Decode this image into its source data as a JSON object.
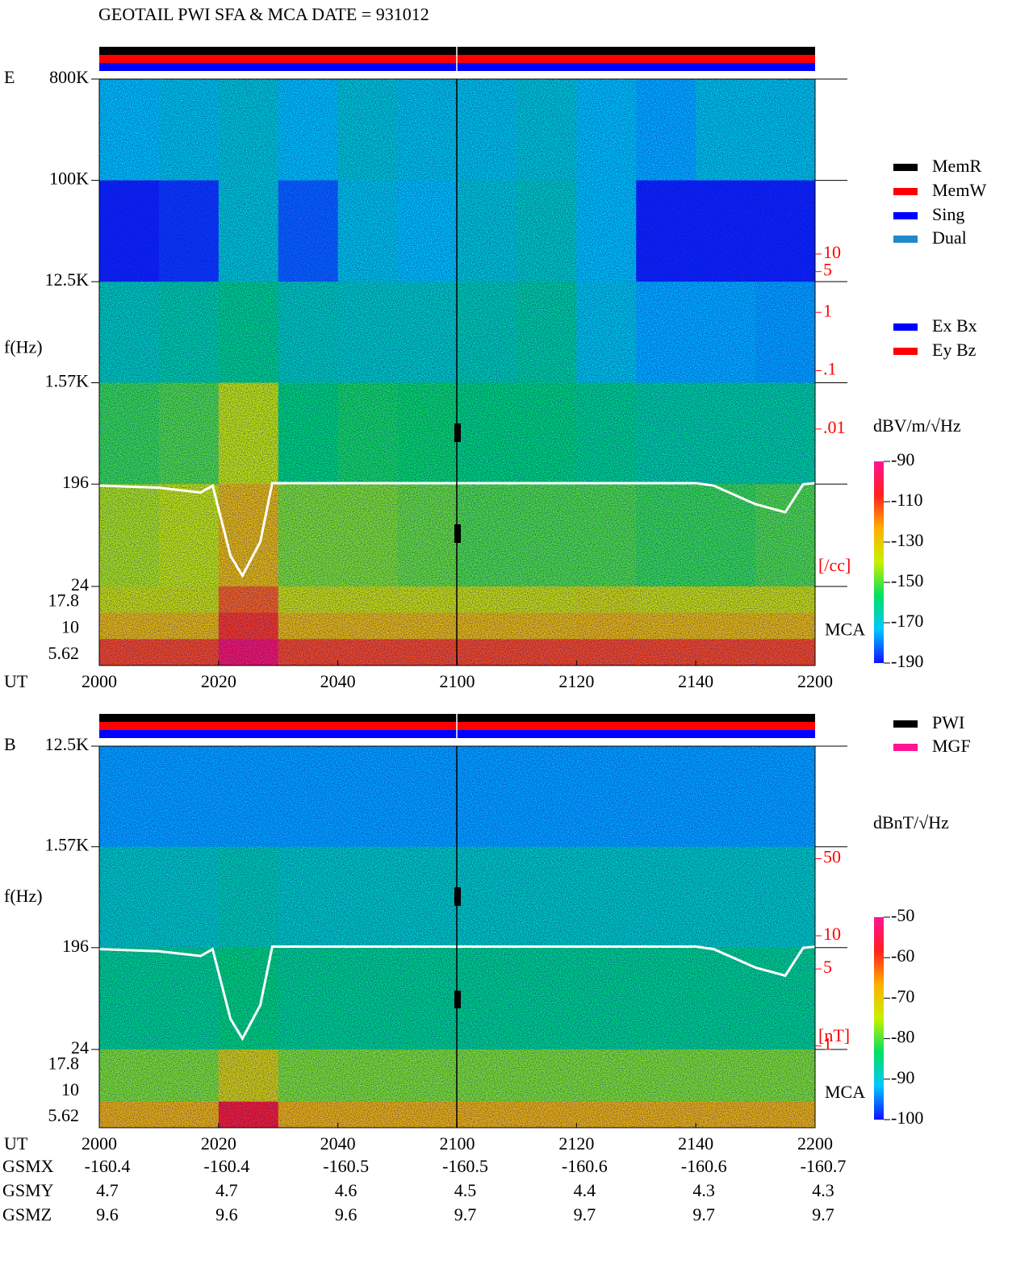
{
  "chart_data": [
    {
      "type": "spectrogram",
      "title": "GEOTAIL  PWI SFA & MCA   DATE = 931012",
      "panel_label": "E",
      "ylabel": "f(Hz)",
      "xlabel": "UT",
      "mca_label": "MCA",
      "log_y": true,
      "ylim": [
        24,
        800000
      ],
      "yticks": [
        {
          "value": 800000,
          "label": "800K"
        },
        {
          "value": 100000,
          "label": "100K"
        },
        {
          "value": 12500,
          "label": "12.5K"
        },
        {
          "value": 1570,
          "label": "1.57K"
        },
        196,
        24
      ],
      "xlim": [
        0,
        120
      ],
      "xticks": [
        {
          "value": 0,
          "label": "2000"
        },
        {
          "value": 20,
          "label": "2020"
        },
        {
          "value": 40,
          "label": "2040"
        },
        {
          "value": 60,
          "label": "2100"
        },
        {
          "value": 80,
          "label": "2120"
        },
        {
          "value": 100,
          "label": "2140"
        },
        {
          "value": 120,
          "label": "2200"
        }
      ],
      "time_edges": [
        0,
        10,
        20,
        30,
        40,
        50,
        60,
        70,
        80,
        90,
        100,
        110,
        120
      ],
      "freq_edges": [
        800000,
        100000,
        12500,
        1570,
        196,
        24
      ],
      "levels": [
        [
          -172,
          -170,
          -168,
          -172,
          -168,
          -170,
          -170,
          -168,
          -172,
          -175,
          -170,
          -170
        ],
        [
          -188,
          -186,
          -168,
          -182,
          -170,
          -172,
          -168,
          -166,
          -172,
          -188,
          -188,
          -188
        ],
        [
          -165,
          -163,
          -160,
          -165,
          -166,
          -166,
          -164,
          -162,
          -170,
          -175,
          -175,
          -176
        ],
        [
          -152,
          -150,
          -140,
          -158,
          -155,
          -156,
          -158,
          -158,
          -160,
          -162,
          -162,
          -162
        ],
        [
          -142,
          -140,
          -128,
          -146,
          -146,
          -148,
          -150,
          -150,
          -150,
          -152,
          -152,
          -150
        ]
      ],
      "mca_channels": [
        17.8,
        10,
        5.62
      ],
      "mca_levels": [
        [
          -138,
          -138,
          -115,
          -138,
          -138,
          -138,
          -138,
          -138,
          -136,
          -138,
          -138,
          -138
        ],
        [
          -128,
          -128,
          -110,
          -128,
          -128,
          -128,
          -128,
          -128,
          -127,
          -128,
          -128,
          -128
        ],
        [
          -112,
          -112,
          -98,
          -112,
          -112,
          -112,
          -112,
          -112,
          -112,
          -112,
          -112,
          -112
        ]
      ],
      "clim": [
        -190,
        -90
      ],
      "cticks": [
        -90,
        -110,
        -130,
        -150,
        -170,
        -190
      ],
      "unit": "dBV/m/√Hz",
      "colormap": [
        "#1010ff",
        "#00c8ff",
        "#00e060",
        "#c8f000",
        "#ffb000",
        "#ff2020",
        "#ff1493"
      ],
      "line_color": "#ffffff",
      "line_x": [
        0,
        10,
        17,
        19,
        22,
        24,
        27,
        29,
        60,
        100,
        103,
        110,
        115,
        118,
        120
      ],
      "line_values": [
        190,
        182,
        165,
        190,
        45,
        30,
        60,
        200,
        200,
        200,
        190,
        130,
        110,
        195,
        200
      ],
      "y2lim": [
        2e-05,
        10000
      ],
      "y2ticks": [
        10,
        5,
        1,
        {
          "value": 0.1,
          "label": ".1"
        },
        {
          "value": 0.01,
          "label": ".01"
        }
      ],
      "y2label": "[/cc]",
      "legend": [
        {
          "name": "MemR",
          "color": "#000000"
        },
        {
          "name": "MemW",
          "color": "#ff0000"
        },
        {
          "name": "Sing",
          "color": "#0000ff"
        },
        {
          "name": "Dual",
          "color": "#2288cc"
        }
      ],
      "legend2": [
        {
          "name": "Ex Bx",
          "color": "#0000ff"
        },
        {
          "name": "Ey Bz",
          "color": "#ff0000"
        }
      ]
    },
    {
      "type": "spectrogram",
      "panel_label": "B",
      "ylabel": "f(Hz)",
      "xlabel": "UT",
      "mca_label": "MCA",
      "log_y": true,
      "ylim": [
        24,
        12500
      ],
      "yticks": [
        {
          "value": 12500,
          "label": "12.5K"
        },
        {
          "value": 1570,
          "label": "1.57K"
        },
        196,
        24
      ],
      "xlim": [
        0,
        120
      ],
      "xticks": [
        {
          "value": 0,
          "label": "2000"
        },
        {
          "value": 20,
          "label": "2020"
        },
        {
          "value": 40,
          "label": "2040"
        },
        {
          "value": 60,
          "label": "2100"
        },
        {
          "value": 80,
          "label": "2120"
        },
        {
          "value": 100,
          "label": "2140"
        },
        {
          "value": 120,
          "label": "2200"
        }
      ],
      "time_edges": [
        0,
        10,
        20,
        30,
        40,
        50,
        60,
        70,
        80,
        90,
        100,
        110,
        120
      ],
      "freq_edges": [
        12500,
        1570,
        196,
        24
      ],
      "levels": [
        [
          -93,
          -93,
          -93,
          -93,
          -93,
          -93,
          -93,
          -93,
          -93,
          -93,
          -93,
          -93
        ],
        [
          -88,
          -88,
          -87,
          -88,
          -88,
          -88,
          -88,
          -88,
          -88,
          -88,
          -88,
          -88
        ],
        [
          -85,
          -85,
          -84,
          -85,
          -85,
          -85,
          -85,
          -85,
          -85,
          -85,
          -85,
          -85
        ]
      ],
      "mca_channels": [
        17.8,
        10,
        5.62
      ],
      "mca_levels": [
        [
          -78,
          -78,
          -72,
          -78,
          -78,
          -78,
          -78,
          -78,
          -78,
          -78,
          -78,
          -78
        ],
        [
          -78,
          -78,
          -72,
          -78,
          -78,
          -78,
          -78,
          -78,
          -78,
          -78,
          -78,
          -78
        ],
        [
          -68,
          -68,
          -58,
          -68,
          -68,
          -68,
          -68,
          -68,
          -68,
          -68,
          -68,
          -68
        ]
      ],
      "clim": [
        -100,
        -50
      ],
      "cticks": [
        -50,
        -60,
        -70,
        -80,
        -90,
        -100
      ],
      "unit": "dBnT/√Hz",
      "colormap": [
        "#1010ff",
        "#00c8ff",
        "#00e060",
        "#c8f000",
        "#ffb000",
        "#ff2020",
        "#ff1493"
      ],
      "line_color": "#ffffff",
      "line_x": [
        0,
        10,
        17,
        19,
        22,
        24,
        27,
        29,
        60,
        100,
        103,
        110,
        115,
        118,
        120
      ],
      "line_values": [
        190,
        182,
        165,
        190,
        45,
        30,
        60,
        200,
        200,
        200,
        190,
        130,
        110,
        195,
        200
      ],
      "y2lim": [
        0.93,
        525
      ],
      "y2ticks": [
        50,
        10,
        5,
        1
      ],
      "y2label": "[nT]",
      "legend": [
        {
          "name": "PWI",
          "color": "#000000"
        },
        {
          "name": "MGF",
          "color": "#ff1493"
        }
      ],
      "ephemeris": [
        {
          "name": "GSMX",
          "values": [
            -160.4,
            -160.4,
            -160.5,
            -160.5,
            -160.6,
            -160.6,
            -160.7
          ]
        },
        {
          "name": "GSMY",
          "values": [
            4.7,
            4.7,
            4.6,
            4.5,
            4.4,
            4.3,
            4.3
          ]
        },
        {
          "name": "GSMZ",
          "values": [
            9.6,
            9.6,
            9.6,
            9.7,
            9.7,
            9.7,
            9.7
          ]
        }
      ]
    }
  ]
}
